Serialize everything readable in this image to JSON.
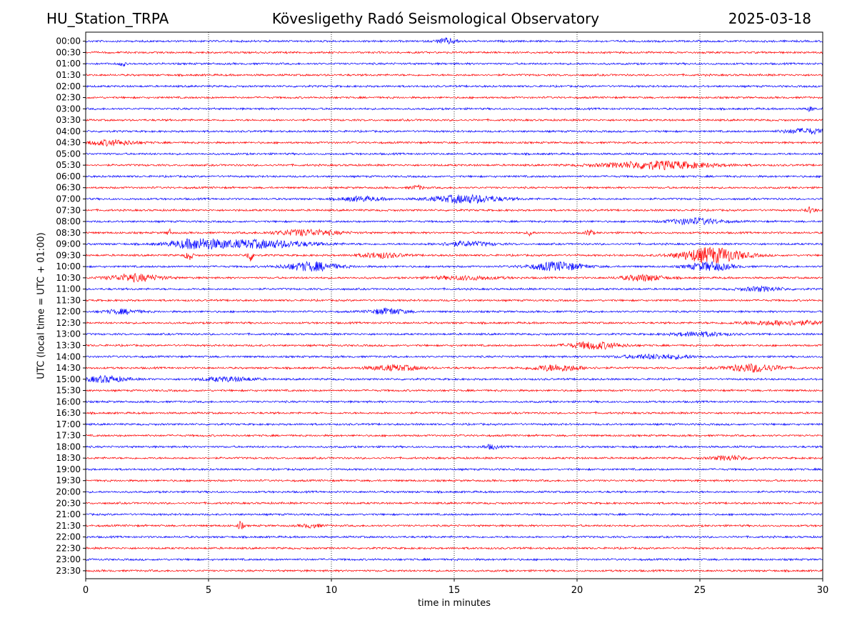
{
  "header": {
    "station": "HU_Station_TRPA",
    "observatory": "Kövesligethy Radó Seismological Observatory",
    "date": "2025-03-18"
  },
  "chart_data": {
    "type": "line",
    "subtype": "helicorder",
    "xlabel": "time in minutes",
    "ylabel": "UTC (local time = UTC + 01:00)",
    "xlim": [
      0,
      30
    ],
    "x_ticks": [
      0,
      5,
      10,
      15,
      20,
      25,
      30
    ],
    "grid": "vertical dotted lines at 5-minute ticks",
    "trace_colors": [
      "#0000ff",
      "#ff0000"
    ],
    "row_labels": [
      "00:00",
      "00:30",
      "01:00",
      "01:30",
      "02:00",
      "02:30",
      "03:00",
      "03:30",
      "04:00",
      "04:30",
      "05:00",
      "05:30",
      "06:00",
      "06:30",
      "07:00",
      "07:30",
      "08:00",
      "08:30",
      "09:00",
      "09:30",
      "10:00",
      "10:30",
      "11:00",
      "11:30",
      "12:00",
      "12:30",
      "13:00",
      "13:30",
      "14:00",
      "14:30",
      "15:00",
      "15:30",
      "16:00",
      "16:30",
      "17:00",
      "17:30",
      "18:00",
      "18:30",
      "19:00",
      "19:30",
      "20:00",
      "20:30",
      "21:00",
      "21:30",
      "22:00",
      "22:30",
      "23:00",
      "23:30"
    ],
    "bursts": [
      {
        "row": 0,
        "minute": 14.7,
        "amplitude": 0.6,
        "duration": 0.6
      },
      {
        "row": 2,
        "minute": 1.5,
        "amplitude": 0.6,
        "duration": 0.15
      },
      {
        "row": 6,
        "minute": 29.5,
        "amplitude": 0.5,
        "duration": 0.2
      },
      {
        "row": 8,
        "minute": 29.3,
        "amplitude": 0.6,
        "duration": 1.2
      },
      {
        "row": 9,
        "minute": 1.0,
        "amplitude": 0.6,
        "duration": 1.5
      },
      {
        "row": 11,
        "minute": 23.3,
        "amplitude": 0.9,
        "duration": 3.0
      },
      {
        "row": 13,
        "minute": 13.5,
        "amplitude": 0.4,
        "duration": 0.4
      },
      {
        "row": 14,
        "minute": 11.2,
        "amplitude": 0.5,
        "duration": 1.2
      },
      {
        "row": 14,
        "minute": 15.5,
        "amplitude": 0.9,
        "duration": 2.0
      },
      {
        "row": 15,
        "minute": 29.5,
        "amplitude": 0.6,
        "duration": 0.3
      },
      {
        "row": 16,
        "minute": 24.8,
        "amplitude": 0.7,
        "duration": 1.5
      },
      {
        "row": 17,
        "minute": 3.4,
        "amplitude": 0.7,
        "duration": 0.15
      },
      {
        "row": 17,
        "minute": 9.0,
        "amplitude": 0.7,
        "duration": 1.8
      },
      {
        "row": 17,
        "minute": 18.1,
        "amplitude": 0.7,
        "duration": 0.15
      },
      {
        "row": 17,
        "minute": 20.5,
        "amplitude": 0.8,
        "duration": 0.2
      },
      {
        "row": 18,
        "minute": 4.5,
        "amplitude": 1.0,
        "duration": 1.5
      },
      {
        "row": 18,
        "minute": 7.0,
        "amplitude": 0.9,
        "duration": 3.0
      },
      {
        "row": 18,
        "minute": 15.5,
        "amplitude": 0.5,
        "duration": 1.5
      },
      {
        "row": 19,
        "minute": 4.2,
        "amplitude": 1.2,
        "duration": 0.2
      },
      {
        "row": 19,
        "minute": 6.7,
        "amplitude": 1.3,
        "duration": 0.2
      },
      {
        "row": 19,
        "minute": 12.0,
        "amplitude": 0.6,
        "duration": 1.2
      },
      {
        "row": 19,
        "minute": 25.5,
        "amplitude": 1.8,
        "duration": 1.8
      },
      {
        "row": 20,
        "minute": 9.2,
        "amplitude": 1.0,
        "duration": 1.5
      },
      {
        "row": 20,
        "minute": 19.2,
        "amplitude": 1.0,
        "duration": 1.5
      },
      {
        "row": 20,
        "minute": 25.4,
        "amplitude": 1.0,
        "duration": 1.2
      },
      {
        "row": 21,
        "minute": 2.0,
        "amplitude": 0.8,
        "duration": 1.5
      },
      {
        "row": 21,
        "minute": 15.5,
        "amplitude": 0.4,
        "duration": 2.0
      },
      {
        "row": 21,
        "minute": 22.7,
        "amplitude": 0.7,
        "duration": 1.2
      },
      {
        "row": 22,
        "minute": 27.5,
        "amplitude": 0.5,
        "duration": 1.2
      },
      {
        "row": 24,
        "minute": 1.5,
        "amplitude": 0.5,
        "duration": 1.0
      },
      {
        "row": 24,
        "minute": 12.3,
        "amplitude": 0.7,
        "duration": 1.0
      },
      {
        "row": 25,
        "minute": 28.5,
        "amplitude": 0.5,
        "duration": 2.5
      },
      {
        "row": 26,
        "minute": 25.0,
        "amplitude": 0.5,
        "duration": 1.5
      },
      {
        "row": 27,
        "minute": 20.7,
        "amplitude": 0.8,
        "duration": 1.5
      },
      {
        "row": 28,
        "minute": 23.3,
        "amplitude": 0.5,
        "duration": 2.0
      },
      {
        "row": 29,
        "minute": 12.6,
        "amplitude": 0.6,
        "duration": 1.5
      },
      {
        "row": 29,
        "minute": 19.2,
        "amplitude": 0.7,
        "duration": 1.5
      },
      {
        "row": 29,
        "minute": 27.2,
        "amplitude": 0.9,
        "duration": 1.5
      },
      {
        "row": 30,
        "minute": 0.8,
        "amplitude": 0.7,
        "duration": 1.2
      },
      {
        "row": 30,
        "minute": 5.8,
        "amplitude": 0.5,
        "duration": 1.5
      },
      {
        "row": 36,
        "minute": 16.5,
        "amplitude": 0.5,
        "duration": 0.4
      },
      {
        "row": 37,
        "minute": 26.2,
        "amplitude": 0.5,
        "duration": 1.0
      },
      {
        "row": 43,
        "minute": 6.3,
        "amplitude": 1.0,
        "duration": 0.15
      },
      {
        "row": 43,
        "minute": 9.2,
        "amplitude": 0.4,
        "duration": 0.6
      }
    ]
  }
}
